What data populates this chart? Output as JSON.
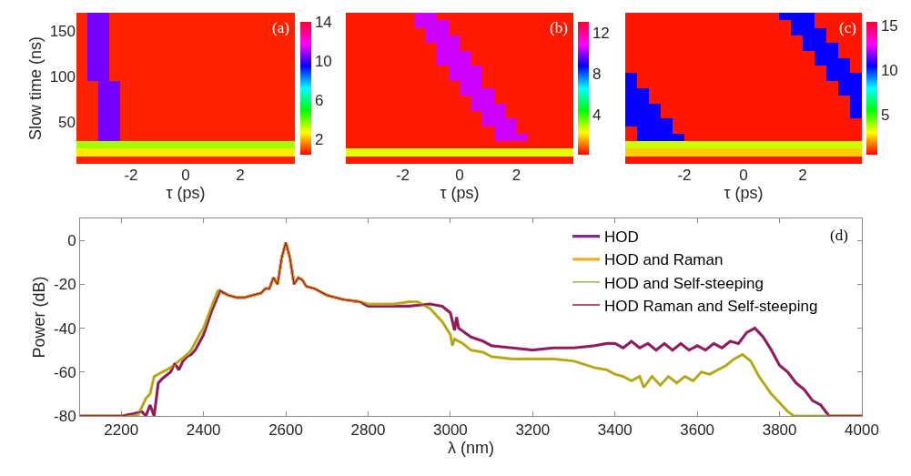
{
  "chart_data": [
    {
      "type": "heatmap",
      "xlabel": "τ (ps)",
      "ylabel": "Slow time (ns)",
      "annotations": [
        "(a)"
      ],
      "x": [
        -3.8,
        -3.4,
        -3.0,
        -2.6,
        -2.2,
        -1.8,
        -1.4,
        -1.0,
        -0.6,
        -0.2,
        0.2,
        0.6,
        1.0,
        1.4,
        1.8,
        2.2,
        2.6,
        3.0,
        3.4,
        3.8
      ],
      "xlim": [
        -4,
        4
      ],
      "xticks": [
        -2,
        0,
        2
      ],
      "ylim": [
        4,
        170
      ],
      "yticks": [
        50,
        100,
        150
      ],
      "clim": [
        0.4,
        14
      ],
      "cticks": [
        2,
        6,
        10,
        14
      ],
      "cells": [
        [
          0.7,
          10.5,
          10.5,
          0.7,
          0.7,
          0.7,
          0.7,
          0.7,
          0.7,
          0.7,
          0.7,
          0.7,
          0.7,
          0.7,
          0.7,
          0.7,
          0.7,
          0.7,
          0.7,
          0.7
        ],
        [
          0.7,
          10.5,
          10.5,
          0.7,
          0.7,
          0.7,
          0.7,
          0.7,
          0.7,
          0.7,
          0.7,
          0.7,
          0.7,
          0.7,
          0.7,
          0.7,
          0.7,
          0.7,
          0.7,
          0.7
        ],
        [
          0.7,
          10.5,
          10.5,
          0.7,
          0.7,
          0.7,
          0.7,
          0.7,
          0.7,
          0.7,
          0.7,
          0.7,
          0.7,
          0.7,
          0.7,
          0.7,
          0.7,
          0.7,
          0.7,
          0.7
        ],
        [
          0.7,
          10.5,
          10.5,
          0.7,
          0.7,
          0.7,
          0.7,
          0.7,
          0.7,
          0.7,
          0.7,
          0.7,
          0.7,
          0.7,
          0.7,
          0.7,
          0.7,
          0.7,
          0.7,
          0.7
        ],
        [
          0.7,
          10.5,
          10.5,
          0.7,
          0.7,
          0.7,
          0.7,
          0.7,
          0.7,
          0.7,
          0.7,
          0.7,
          0.7,
          0.7,
          0.7,
          0.7,
          0.7,
          0.7,
          0.7,
          0.7
        ],
        [
          0.7,
          10.5,
          10.5,
          0.7,
          0.7,
          0.7,
          0.7,
          0.7,
          0.7,
          0.7,
          0.7,
          0.7,
          0.7,
          0.7,
          0.7,
          0.7,
          0.7,
          0.7,
          0.7,
          0.7
        ],
        [
          0.7,
          10.5,
          10.5,
          0.7,
          0.7,
          0.7,
          0.7,
          0.7,
          0.7,
          0.7,
          0.7,
          0.7,
          0.7,
          0.7,
          0.7,
          0.7,
          0.7,
          0.7,
          0.7,
          0.7
        ],
        [
          0.7,
          10.5,
          10.5,
          0.7,
          0.7,
          0.7,
          0.7,
          0.7,
          0.7,
          0.7,
          0.7,
          0.7,
          0.7,
          0.7,
          0.7,
          0.7,
          0.7,
          0.7,
          0.7,
          0.7
        ],
        [
          0.7,
          10.5,
          10.5,
          0.7,
          0.7,
          0.7,
          0.7,
          0.7,
          0.7,
          0.7,
          0.7,
          0.7,
          0.7,
          0.7,
          0.7,
          0.7,
          0.7,
          0.7,
          0.7,
          0.7
        ],
        [
          0.7,
          0.7,
          10.5,
          10.5,
          0.7,
          0.7,
          0.7,
          0.7,
          0.7,
          0.7,
          0.7,
          0.7,
          0.7,
          0.7,
          0.7,
          0.7,
          0.7,
          0.7,
          0.7,
          0.7
        ],
        [
          0.7,
          0.7,
          10.5,
          10.5,
          0.7,
          0.7,
          0.7,
          0.7,
          0.7,
          0.7,
          0.7,
          0.7,
          0.7,
          0.7,
          0.7,
          0.7,
          0.7,
          0.7,
          0.7,
          0.7
        ],
        [
          0.7,
          0.7,
          10.5,
          10.5,
          0.7,
          0.7,
          0.7,
          0.7,
          0.7,
          0.7,
          0.7,
          0.7,
          0.7,
          0.7,
          0.7,
          0.7,
          0.7,
          0.7,
          0.7,
          0.7
        ],
        [
          0.7,
          0.7,
          10.5,
          10.5,
          0.7,
          0.7,
          0.7,
          0.7,
          0.7,
          0.7,
          0.7,
          0.7,
          0.7,
          0.7,
          0.7,
          0.7,
          0.7,
          0.7,
          0.7,
          0.7
        ],
        [
          0.7,
          0.7,
          10.5,
          10.5,
          0.7,
          0.7,
          0.7,
          0.7,
          0.7,
          0.7,
          0.7,
          0.7,
          0.7,
          0.7,
          0.7,
          0.7,
          0.7,
          0.7,
          0.7,
          0.7
        ],
        [
          0.7,
          0.7,
          10.5,
          10.5,
          0.7,
          0.7,
          0.7,
          0.7,
          0.7,
          0.7,
          0.7,
          0.7,
          0.7,
          0.7,
          0.7,
          0.7,
          0.7,
          0.7,
          0.7,
          0.7
        ],
        [
          0.7,
          0.7,
          10.5,
          10.5,
          0.7,
          0.7,
          0.7,
          0.7,
          0.7,
          0.7,
          0.7,
          0.7,
          0.7,
          0.7,
          0.7,
          0.7,
          0.7,
          0.7,
          0.7,
          0.7
        ],
        [
          0.7,
          0.7,
          10.5,
          10.5,
          0.7,
          0.7,
          0.7,
          0.7,
          0.7,
          0.7,
          0.7,
          0.7,
          0.7,
          0.7,
          0.7,
          0.7,
          0.7,
          0.7,
          0.7,
          0.7
        ],
        [
          3.5,
          3.5,
          3.5,
          3.5,
          3.5,
          3.5,
          3.5,
          3.5,
          3.5,
          3.5,
          3.5,
          3.5,
          3.5,
          3.5,
          3.5,
          3.5,
          3.5,
          3.5,
          3.5,
          3.5
        ],
        [
          2.5,
          2.5,
          2.5,
          2.5,
          2.5,
          2.5,
          2.5,
          2.5,
          2.5,
          2.5,
          2.5,
          2.5,
          2.5,
          2.5,
          2.5,
          2.5,
          2.5,
          2.5,
          2.5,
          2.5
        ],
        [
          0.7,
          0.7,
          0.7,
          0.7,
          0.7,
          0.7,
          0.7,
          0.7,
          0.7,
          0.7,
          0.7,
          0.7,
          0.7,
          0.7,
          0.7,
          0.7,
          0.7,
          0.7,
          0.7,
          0.7
        ]
      ]
    },
    {
      "type": "heatmap",
      "xlabel": "τ (ps)",
      "annotations": [
        "(b)"
      ],
      "tick_labels": "x",
      "x": [
        -3.8,
        -3.4,
        -3.0,
        -2.6,
        -2.2,
        -1.8,
        -1.4,
        -1.0,
        -0.6,
        -0.2,
        0.2,
        0.6,
        1.0,
        1.4,
        1.8,
        2.2,
        2.6,
        3.0,
        3.4,
        3.8
      ],
      "xlim": [
        -4,
        4
      ],
      "xticks": [
        -2,
        0,
        2
      ],
      "ylim": [
        4,
        170
      ],
      "clim": [
        0.1,
        13.1
      ],
      "cticks": [
        4,
        8,
        12
      ],
      "cells": [
        [
          0.3,
          0.3,
          0.3,
          0.3,
          0.3,
          0.3,
          10.5,
          10.5,
          0.3,
          0.3,
          0.3,
          0.3,
          0.3,
          0.3,
          0.3,
          0.3,
          0.3,
          0.3,
          0.3,
          0.3
        ],
        [
          0.3,
          0.3,
          0.3,
          0.3,
          0.3,
          0.3,
          10.5,
          10.5,
          10.5,
          0.3,
          0.3,
          0.3,
          0.3,
          0.3,
          0.3,
          0.3,
          0.3,
          0.3,
          0.3,
          0.3
        ],
        [
          0.3,
          0.3,
          0.3,
          0.3,
          0.3,
          0.3,
          0.3,
          10.5,
          10.5,
          0.3,
          0.3,
          0.3,
          0.3,
          0.3,
          0.3,
          0.3,
          0.3,
          0.3,
          0.3,
          0.3
        ],
        [
          0.3,
          0.3,
          0.3,
          0.3,
          0.3,
          0.3,
          0.3,
          10.5,
          10.5,
          10.5,
          0.3,
          0.3,
          0.3,
          0.3,
          0.3,
          0.3,
          0.3,
          0.3,
          0.3,
          0.3
        ],
        [
          0.3,
          0.3,
          0.3,
          0.3,
          0.3,
          0.3,
          0.3,
          0.3,
          10.5,
          10.5,
          0.3,
          0.3,
          0.3,
          0.3,
          0.3,
          0.3,
          0.3,
          0.3,
          0.3,
          0.3
        ],
        [
          0.3,
          0.3,
          0.3,
          0.3,
          0.3,
          0.3,
          0.3,
          0.3,
          10.5,
          10.5,
          10.5,
          0.3,
          0.3,
          0.3,
          0.3,
          0.3,
          0.3,
          0.3,
          0.3,
          0.3
        ],
        [
          0.3,
          0.3,
          0.3,
          0.3,
          0.3,
          0.3,
          0.3,
          0.3,
          10.5,
          10.5,
          10.5,
          0.3,
          0.3,
          0.3,
          0.3,
          0.3,
          0.3,
          0.3,
          0.3,
          0.3
        ],
        [
          0.3,
          0.3,
          0.3,
          0.3,
          0.3,
          0.3,
          0.3,
          0.3,
          0.3,
          10.5,
          10.5,
          10.5,
          0.3,
          0.3,
          0.3,
          0.3,
          0.3,
          0.3,
          0.3,
          0.3
        ],
        [
          0.3,
          0.3,
          0.3,
          0.3,
          0.3,
          0.3,
          0.3,
          0.3,
          0.3,
          10.5,
          10.5,
          10.5,
          0.3,
          0.3,
          0.3,
          0.3,
          0.3,
          0.3,
          0.3,
          0.3
        ],
        [
          0.3,
          0.3,
          0.3,
          0.3,
          0.3,
          0.3,
          0.3,
          0.3,
          0.3,
          0.3,
          10.5,
          10.5,
          0.3,
          0.3,
          0.3,
          0.3,
          0.3,
          0.3,
          0.3,
          0.3
        ],
        [
          0.3,
          0.3,
          0.3,
          0.3,
          0.3,
          0.3,
          0.3,
          0.3,
          0.3,
          0.3,
          10.5,
          10.5,
          10.5,
          0.3,
          0.3,
          0.3,
          0.3,
          0.3,
          0.3,
          0.3
        ],
        [
          0.3,
          0.3,
          0.3,
          0.3,
          0.3,
          0.3,
          0.3,
          0.3,
          0.3,
          0.3,
          0.3,
          10.5,
          10.5,
          0.3,
          0.3,
          0.3,
          0.3,
          0.3,
          0.3,
          0.3
        ],
        [
          0.3,
          0.3,
          0.3,
          0.3,
          0.3,
          0.3,
          0.3,
          0.3,
          0.3,
          0.3,
          0.3,
          10.5,
          10.5,
          10.5,
          0.3,
          0.3,
          0.3,
          0.3,
          0.3,
          0.3
        ],
        [
          0.3,
          0.3,
          0.3,
          0.3,
          0.3,
          0.3,
          0.3,
          0.3,
          0.3,
          0.3,
          0.3,
          0.3,
          10.5,
          10.5,
          0.3,
          0.3,
          0.3,
          0.3,
          0.3,
          0.3
        ],
        [
          0.3,
          0.3,
          0.3,
          0.3,
          0.3,
          0.3,
          0.3,
          0.3,
          0.3,
          0.3,
          0.3,
          0.3,
          10.5,
          10.5,
          10.5,
          0.3,
          0.3,
          0.3,
          0.3,
          0.3
        ],
        [
          0.3,
          0.3,
          0.3,
          0.3,
          0.3,
          0.3,
          0.3,
          0.3,
          0.3,
          0.3,
          0.3,
          0.3,
          0.3,
          10.5,
          10.5,
          0.3,
          0.3,
          0.3,
          0.3,
          0.3
        ],
        [
          0.3,
          0.3,
          0.3,
          0.3,
          0.3,
          0.3,
          0.3,
          0.3,
          0.3,
          0.3,
          0.3,
          0.3,
          0.3,
          10.5,
          10.5,
          10.5,
          0.3,
          0.3,
          0.3,
          0.3
        ],
        [
          0.3,
          0.3,
          0.3,
          0.3,
          0.3,
          0.3,
          0.3,
          0.3,
          0.3,
          0.3,
          0.3,
          0.3,
          0.3,
          0.3,
          0.3,
          0.3,
          0.3,
          0.3,
          0.3,
          0.3
        ],
        [
          2.5,
          2.5,
          2.5,
          2.5,
          2.5,
          2.5,
          2.5,
          2.5,
          2.5,
          2.5,
          2.5,
          2.5,
          2.5,
          2.5,
          2.5,
          2.5,
          2.5,
          2.5,
          2.5,
          2.5
        ],
        [
          0.3,
          0.3,
          0.3,
          0.3,
          0.3,
          0.3,
          0.3,
          0.3,
          0.3,
          0.3,
          0.3,
          0.3,
          0.3,
          0.3,
          0.3,
          0.3,
          0.3,
          0.3,
          0.3,
          0.3
        ]
      ]
    },
    {
      "type": "heatmap",
      "xlabel": "τ (ps)",
      "annotations": [
        "(c)"
      ],
      "tick_labels": "x",
      "x": [
        -3.8,
        -3.4,
        -3.0,
        -2.6,
        -2.2,
        -1.8,
        -1.4,
        -1.0,
        -0.6,
        -0.2,
        0.2,
        0.6,
        1.0,
        1.4,
        1.8,
        2.2,
        2.6,
        3.0,
        3.4,
        3.8
      ],
      "xlim": [
        -4,
        4
      ],
      "xticks": [
        -2,
        0,
        2
      ],
      "ylim": [
        4,
        170
      ],
      "clim": [
        0.5,
        15.4
      ],
      "cticks": [
        5,
        10,
        15
      ],
      "cells": [
        [
          0.7,
          0.7,
          0.7,
          0.7,
          0.7,
          0.7,
          0.7,
          0.7,
          0.7,
          0.7,
          0.7,
          0.7,
          0.7,
          10.5,
          10.5,
          10.5,
          0.7,
          0.7,
          0.7,
          0.7
        ],
        [
          0.7,
          0.7,
          0.7,
          0.7,
          0.7,
          0.7,
          0.7,
          0.7,
          0.7,
          0.7,
          0.7,
          0.7,
          0.7,
          0.7,
          10.5,
          10.5,
          0.7,
          0.7,
          0.7,
          0.7
        ],
        [
          0.7,
          0.7,
          0.7,
          0.7,
          0.7,
          0.7,
          0.7,
          0.7,
          0.7,
          0.7,
          0.7,
          0.7,
          0.7,
          0.7,
          10.5,
          10.5,
          10.5,
          0.7,
          0.7,
          0.7
        ],
        [
          0.7,
          0.7,
          0.7,
          0.7,
          0.7,
          0.7,
          0.7,
          0.7,
          0.7,
          0.7,
          0.7,
          0.7,
          0.7,
          0.7,
          0.7,
          10.5,
          10.5,
          0.7,
          0.7,
          0.7
        ],
        [
          0.7,
          0.7,
          0.7,
          0.7,
          0.7,
          0.7,
          0.7,
          0.7,
          0.7,
          0.7,
          0.7,
          0.7,
          0.7,
          0.7,
          0.7,
          10.5,
          10.5,
          10.5,
          0.7,
          0.7
        ],
        [
          0.7,
          0.7,
          0.7,
          0.7,
          0.7,
          0.7,
          0.7,
          0.7,
          0.7,
          0.7,
          0.7,
          0.7,
          0.7,
          0.7,
          0.7,
          0.7,
          10.5,
          10.5,
          0.7,
          0.7
        ],
        [
          0.7,
          0.7,
          0.7,
          0.7,
          0.7,
          0.7,
          0.7,
          0.7,
          0.7,
          0.7,
          0.7,
          0.7,
          0.7,
          0.7,
          0.7,
          0.7,
          10.5,
          10.5,
          10.5,
          0.7
        ],
        [
          0.7,
          0.7,
          0.7,
          0.7,
          0.7,
          0.7,
          0.7,
          0.7,
          0.7,
          0.7,
          0.7,
          0.7,
          0.7,
          0.7,
          0.7,
          0.7,
          0.7,
          10.5,
          10.5,
          0.7
        ],
        [
          10.5,
          0.7,
          0.7,
          0.7,
          0.7,
          0.7,
          0.7,
          0.7,
          0.7,
          0.7,
          0.7,
          0.7,
          0.7,
          0.7,
          0.7,
          0.7,
          0.7,
          10.5,
          10.5,
          10.5
        ],
        [
          10.5,
          0.7,
          0.7,
          0.7,
          0.7,
          0.7,
          0.7,
          0.7,
          0.7,
          0.7,
          0.7,
          0.7,
          0.7,
          0.7,
          0.7,
          0.7,
          0.7,
          0.7,
          10.5,
          10.5
        ],
        [
          10.5,
          10.5,
          0.7,
          0.7,
          0.7,
          0.7,
          0.7,
          0.7,
          0.7,
          0.7,
          0.7,
          0.7,
          0.7,
          0.7,
          0.7,
          0.7,
          0.7,
          0.7,
          10.5,
          10.5
        ],
        [
          10.5,
          10.5,
          0.7,
          0.7,
          0.7,
          0.7,
          0.7,
          0.7,
          0.7,
          0.7,
          0.7,
          0.7,
          0.7,
          0.7,
          0.7,
          0.7,
          0.7,
          0.7,
          0.7,
          10.5
        ],
        [
          10.5,
          10.5,
          10.5,
          0.7,
          0.7,
          0.7,
          0.7,
          0.7,
          0.7,
          0.7,
          0.7,
          0.7,
          0.7,
          0.7,
          0.7,
          0.7,
          0.7,
          0.7,
          0.7,
          10.5
        ],
        [
          10.5,
          10.5,
          10.5,
          0.7,
          0.7,
          0.7,
          0.7,
          0.7,
          0.7,
          0.7,
          0.7,
          0.7,
          0.7,
          0.7,
          0.7,
          0.7,
          0.7,
          0.7,
          0.7,
          10.5
        ],
        [
          10.5,
          10.5,
          10.5,
          10.5,
          0.7,
          0.7,
          0.7,
          0.7,
          0.7,
          0.7,
          0.7,
          0.7,
          0.7,
          0.7,
          0.7,
          0.7,
          0.7,
          0.7,
          0.7,
          0.7
        ],
        [
          0.7,
          10.5,
          10.5,
          10.5,
          0.7,
          0.7,
          0.7,
          0.7,
          0.7,
          0.7,
          0.7,
          0.7,
          0.7,
          0.7,
          0.7,
          0.7,
          0.7,
          0.7,
          0.7,
          0.7
        ],
        [
          0.7,
          10.5,
          10.5,
          10.5,
          10.5,
          0.7,
          0.7,
          0.7,
          0.7,
          0.7,
          0.7,
          0.7,
          0.7,
          0.7,
          0.7,
          0.7,
          0.7,
          0.7,
          0.7,
          0.7
        ],
        [
          3.5,
          3.5,
          3.5,
          3.5,
          3.5,
          3.5,
          3.5,
          3.5,
          3.5,
          3.5,
          3.5,
          3.5,
          3.5,
          3.5,
          3.5,
          3.5,
          3.5,
          3.5,
          3.5,
          3.5
        ],
        [
          2.5,
          2.5,
          2.5,
          2.5,
          2.5,
          2.5,
          2.5,
          2.5,
          2.5,
          2.5,
          2.5,
          2.5,
          2.5,
          2.5,
          2.5,
          2.5,
          2.5,
          2.5,
          2.5,
          2.5
        ],
        [
          0.7,
          0.7,
          0.7,
          0.7,
          0.7,
          0.7,
          0.7,
          0.7,
          0.7,
          0.7,
          0.7,
          0.7,
          0.7,
          0.7,
          0.7,
          0.7,
          0.7,
          0.7,
          0.7,
          0.7
        ]
      ]
    },
    {
      "type": "line",
      "xlabel": "λ (nm)",
      "ylabel": "Power (dB)",
      "annotations": [
        "(d)"
      ],
      "legend": "top right",
      "grid": false,
      "xlim": [
        2100,
        4000
      ],
      "xticks": [
        2200,
        2400,
        2600,
        2800,
        3000,
        3200,
        3400,
        3600,
        3800,
        4000
      ],
      "ylim": [
        -80,
        10
      ],
      "yticks": [
        -80,
        -60,
        -40,
        -20,
        0
      ],
      "series": [
        {
          "name": "HOD",
          "color": "#7e2f8e",
          "x": [
            2100,
            2200,
            2230,
            2250,
            2260,
            2270,
            2280,
            2290,
            2300,
            2320,
            2330,
            2340,
            2350,
            2360,
            2370,
            2380,
            2400,
            2420,
            2440,
            2460,
            2480,
            2500,
            2520,
            2540,
            2550,
            2560,
            2570,
            2580,
            2590,
            2600,
            2610,
            2620,
            2630,
            2640,
            2650,
            2670,
            2700,
            2740,
            2780,
            2800,
            2820,
            2860,
            2900,
            2950,
            2980,
            3000,
            3010,
            3015,
            3020,
            3050,
            3080,
            3100,
            3150,
            3200,
            3250,
            3300,
            3350,
            3380,
            3400,
            3420,
            3440,
            3460,
            3480,
            3500,
            3520,
            3540,
            3560,
            3580,
            3600,
            3620,
            3640,
            3660,
            3680,
            3700,
            3720,
            3740,
            3760,
            3780,
            3800,
            3820,
            3840,
            3860,
            3880,
            3900,
            3920,
            4000
          ],
          "values": [
            -80,
            -80,
            -79,
            -78,
            -80,
            -75,
            -80,
            -65,
            -63,
            -60,
            -56,
            -59,
            -55,
            -53,
            -52,
            -50,
            -43,
            -32,
            -23,
            -25,
            -26,
            -26,
            -25,
            -24,
            -22,
            -22,
            -17,
            -20,
            -8,
            -1,
            -8,
            -20,
            -17,
            -18,
            -21,
            -22,
            -25,
            -27,
            -28,
            -30,
            -30,
            -30,
            -30,
            -29,
            -30,
            -33,
            -41,
            -35,
            -40,
            -44,
            -46,
            -48,
            -49,
            -50,
            -49,
            -49,
            -48,
            -47,
            -47,
            -49,
            -46,
            -49,
            -47,
            -50,
            -47,
            -50,
            -47,
            -50,
            -48,
            -50,
            -47,
            -49,
            -46,
            -47,
            -42,
            -40,
            -44,
            -50,
            -57,
            -60,
            -65,
            -68,
            -73,
            -75,
            -80,
            -80
          ]
        },
        {
          "name": "HOD and Raman",
          "color": "#edb120",
          "x": [
            2100,
            2200,
            2240,
            2260,
            2270,
            2280,
            2300,
            2320,
            2340,
            2360,
            2370,
            2390,
            2400,
            2420,
            2435,
            2460,
            2480,
            2500,
            2520,
            2540,
            2550,
            2560,
            2570,
            2580,
            2590,
            2600,
            2610,
            2620,
            2630,
            2640,
            2650,
            2670,
            2700,
            2740,
            2780,
            2800,
            2820,
            2860,
            2900,
            2920,
            2950,
            2980,
            3000,
            3005,
            3010,
            3030,
            3050,
            3080,
            3100,
            3150,
            3200,
            3250,
            3300,
            3350,
            3380,
            3400,
            3420,
            3440,
            3460,
            3470,
            3490,
            3510,
            3530,
            3550,
            3570,
            3590,
            3610,
            3630,
            3650,
            3670,
            3690,
            3710,
            3730,
            3750,
            3780,
            3800,
            3820,
            3835,
            4000
          ],
          "values": [
            -80,
            -80,
            -80,
            -72,
            -70,
            -62,
            -60,
            -58,
            -55,
            -52,
            -50,
            -43,
            -40,
            -30,
            -23,
            -25,
            -26,
            -26,
            -25,
            -24,
            -22,
            -22,
            -17,
            -20,
            -8,
            -1,
            -8,
            -20,
            -17,
            -18,
            -21,
            -22,
            -25,
            -27,
            -28,
            -29,
            -29,
            -29,
            -28,
            -28,
            -31,
            -37,
            -43,
            -48,
            -45,
            -47,
            -50,
            -51,
            -53,
            -54,
            -54,
            -54,
            -55,
            -58,
            -59,
            -61,
            -62,
            -64,
            -62,
            -67,
            -62,
            -66,
            -62,
            -65,
            -62,
            -64,
            -60,
            -61,
            -59,
            -57,
            -54,
            -52,
            -55,
            -62,
            -70,
            -74,
            -78,
            -80,
            -80
          ]
        },
        {
          "name": "HOD and Self-steeping",
          "color": "#77ac30",
          "x": [
            2100,
            2200,
            2240,
            2260,
            2270,
            2280,
            2300,
            2320,
            2340,
            2360,
            2370,
            2390,
            2400,
            2420,
            2435,
            2460,
            2480,
            2500,
            2520,
            2540,
            2550,
            2560,
            2570,
            2580,
            2590,
            2600,
            2610,
            2620,
            2630,
            2640,
            2650,
            2670,
            2700,
            2740,
            2780,
            2800,
            2820,
            2860,
            2900,
            2920,
            2950,
            2980,
            3000,
            3005,
            3010,
            3030,
            3050,
            3080,
            3100,
            3150,
            3200,
            3250,
            3300,
            3350,
            3380,
            3400,
            3420,
            3440,
            3460,
            3470,
            3490,
            3510,
            3530,
            3550,
            3570,
            3590,
            3610,
            3630,
            3650,
            3670,
            3690,
            3710,
            3730,
            3750,
            3780,
            3800,
            3820,
            3835,
            4000
          ],
          "values": [
            -80,
            -80,
            -80,
            -72,
            -70,
            -62,
            -60,
            -58,
            -55,
            -52,
            -50,
            -43,
            -40,
            -30,
            -23,
            -25,
            -26,
            -26,
            -25,
            -24,
            -22,
            -22,
            -17,
            -20,
            -8,
            -1,
            -8,
            -20,
            -17,
            -18,
            -21,
            -22,
            -25,
            -27,
            -28,
            -29,
            -29,
            -29,
            -28,
            -28,
            -31,
            -37,
            -43,
            -48,
            -45,
            -47,
            -50,
            -51,
            -53,
            -54,
            -54,
            -54,
            -55,
            -58,
            -59,
            -61,
            -62,
            -64,
            -62,
            -67,
            -62,
            -66,
            -62,
            -65,
            -62,
            -64,
            -60,
            -61,
            -59,
            -57,
            -54,
            -52,
            -55,
            -62,
            -70,
            -74,
            -78,
            -80,
            -80
          ]
        },
        {
          "name": "HOD Raman and Self-steeping",
          "color": "#a2142f",
          "x": [
            2100,
            2200,
            2230,
            2250,
            2260,
            2270,
            2280,
            2290,
            2300,
            2320,
            2330,
            2340,
            2350,
            2360,
            2370,
            2380,
            2400,
            2420,
            2440,
            2460,
            2480,
            2500,
            2520,
            2540,
            2550,
            2560,
            2570,
            2580,
            2590,
            2600,
            2610,
            2620,
            2630,
            2640,
            2650,
            2670,
            2700,
            2740,
            2780,
            2800,
            2820,
            2860,
            2900,
            2950,
            2980,
            3000,
            3010,
            3015,
            3020,
            3050,
            3080,
            3100,
            3150,
            3200,
            3250,
            3300,
            3350,
            3380,
            3400,
            3420,
            3440,
            3460,
            3480,
            3500,
            3520,
            3540,
            3560,
            3580,
            3600,
            3620,
            3640,
            3660,
            3680,
            3700,
            3720,
            3740,
            3760,
            3780,
            3800,
            3820,
            3840,
            3860,
            3880,
            3900,
            3920,
            4000
          ],
          "values": [
            -80,
            -80,
            -79,
            -78,
            -80,
            -75,
            -80,
            -65,
            -63,
            -60,
            -56,
            -59,
            -55,
            -53,
            -52,
            -50,
            -43,
            -32,
            -23,
            -25,
            -26,
            -26,
            -25,
            -24,
            -22,
            -22,
            -17,
            -20,
            -8,
            -1,
            -8,
            -20,
            -17,
            -18,
            -21,
            -22,
            -25,
            -27,
            -28,
            -30,
            -30,
            -30,
            -30,
            -29,
            -30,
            -33,
            -41,
            -35,
            -40,
            -44,
            -46,
            -48,
            -49,
            -50,
            -49,
            -49,
            -48,
            -47,
            -47,
            -49,
            -46,
            -49,
            -47,
            -50,
            -47,
            -50,
            -47,
            -50,
            -48,
            -50,
            -47,
            -49,
            -46,
            -47,
            -42,
            -40,
            -44,
            -50,
            -57,
            -60,
            -65,
            -68,
            -73,
            -75,
            -80,
            -80
          ]
        }
      ]
    }
  ]
}
